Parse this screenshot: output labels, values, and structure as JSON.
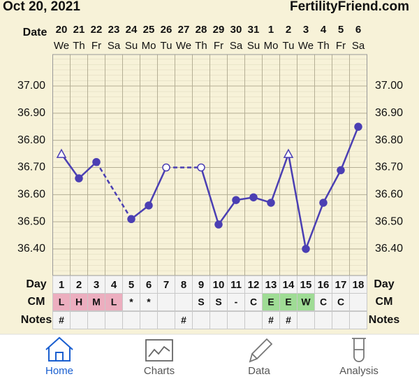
{
  "header": {
    "date": "Oct 20, 2021",
    "site": "FertilityFriend.com"
  },
  "chart_data": {
    "type": "line",
    "date_label": "Date",
    "dates": [
      "20",
      "21",
      "22",
      "23",
      "24",
      "25",
      "26",
      "27",
      "28",
      "29",
      "30",
      "31",
      "1",
      "2",
      "3",
      "4",
      "5",
      "6"
    ],
    "weekdays": [
      "We",
      "Th",
      "Fr",
      "Sa",
      "Su",
      "Mo",
      "Tu",
      "We",
      "Th",
      "Fr",
      "Sa",
      "Su",
      "Mo",
      "Tu",
      "We",
      "Th",
      "Fr",
      "Sa"
    ],
    "categories": [
      "1",
      "2",
      "3",
      "4",
      "5",
      "6",
      "7",
      "8",
      "9",
      "10",
      "11",
      "12",
      "13",
      "14",
      "15",
      "16",
      "17",
      "18"
    ],
    "values": [
      36.75,
      36.66,
      36.72,
      null,
      36.51,
      36.56,
      36.7,
      null,
      36.7,
      36.49,
      36.58,
      36.59,
      36.57,
      36.75,
      36.4,
      36.57,
      36.69,
      36.85
    ],
    "markers": [
      "triangle",
      "circle",
      "circle",
      null,
      "circle",
      "circle",
      "open-circle",
      null,
      "open-circle",
      "circle",
      "circle",
      "circle",
      "circle",
      "triangle",
      "circle",
      "circle",
      "circle",
      "circle"
    ],
    "color": "#4b3fb3",
    "ylim": [
      36.3,
      37.1
    ],
    "yticks": [
      {
        "value": 36.4,
        "label": "36.40"
      },
      {
        "value": 36.5,
        "label": "36.50"
      },
      {
        "value": 36.6,
        "label": "36.60"
      },
      {
        "value": 36.7,
        "label": "36.70"
      },
      {
        "value": 36.8,
        "label": "36.80"
      },
      {
        "value": 36.9,
        "label": "36.90"
      },
      {
        "value": 37.0,
        "label": "37.00"
      }
    ],
    "grid": true
  },
  "table": {
    "rows": [
      {
        "label": "Day",
        "cells": [
          "1",
          "2",
          "3",
          "4",
          "5",
          "6",
          "7",
          "8",
          "9",
          "10",
          "11",
          "12",
          "13",
          "14",
          "15",
          "16",
          "17",
          "18"
        ]
      },
      {
        "label": "CM",
        "cells": [
          "L",
          "H",
          "M",
          "L",
          "*",
          "*",
          null,
          null,
          "S",
          "S",
          "-",
          "C",
          "E",
          "E",
          "W",
          "C",
          "C",
          null
        ]
      },
      {
        "label": "Notes",
        "cells": [
          "#",
          null,
          null,
          null,
          null,
          null,
          null,
          "#",
          null,
          null,
          null,
          null,
          "#",
          "#",
          null,
          null,
          null,
          null
        ]
      }
    ]
  },
  "nav": [
    "Home",
    "Charts",
    "Data",
    "Analysis"
  ]
}
